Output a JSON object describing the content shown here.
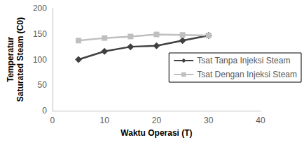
{
  "chart_data": {
    "type": "line",
    "x_label": "Waktu Operasi (T)",
    "y_label": "Temperatur\nSaturated Steam (C0)",
    "x": [
      5,
      10,
      15,
      20,
      25,
      30
    ],
    "series": [
      {
        "name": "Tsat Tanpa Injeksi Steam",
        "color": "#404040",
        "marker": "diamond",
        "line_style": "solid",
        "values": [
          100,
          116,
          125,
          127,
          137,
          147
        ]
      },
      {
        "name": "Tsat Dengan Injeksi Steam",
        "color": "#bfbfbf",
        "marker": "square",
        "line_style": "solid",
        "values": [
          137,
          142,
          145,
          149,
          148,
          147
        ]
      }
    ],
    "xlim": [
      0,
      40
    ],
    "xticks": [
      0,
      10,
      20,
      30,
      40
    ],
    "ylim": [
      0,
      200
    ],
    "yticks": [
      0,
      50,
      100,
      150,
      200
    ],
    "grid": false,
    "legend": "right"
  }
}
